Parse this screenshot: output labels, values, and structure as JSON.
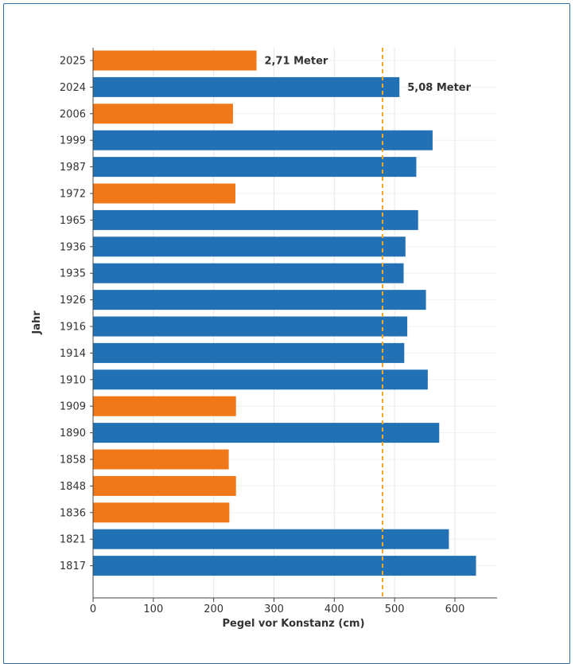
{
  "chart_data": {
    "type": "bar",
    "orientation": "horizontal",
    "xlabel": "Pegel vor Konstanz (cm)",
    "ylabel": "Jahr",
    "xlim": [
      0,
      670
    ],
    "xticks": [
      "0",
      "100",
      "200",
      "300",
      "400",
      "500",
      "600"
    ],
    "categories": [
      "2025",
      "2024",
      "2006",
      "1999",
      "1987",
      "1972",
      "1965",
      "1936",
      "1935",
      "1926",
      "1916",
      "1914",
      "1910",
      "1909",
      "1890",
      "1858",
      "1848",
      "1836",
      "1821",
      "1817"
    ],
    "values": [
      271,
      508,
      232,
      563,
      536,
      236,
      539,
      518,
      515,
      552,
      521,
      516,
      555,
      237,
      574,
      225,
      237,
      226,
      590,
      635
    ],
    "bar_group": [
      "low",
      "high",
      "low",
      "high",
      "high",
      "low",
      "high",
      "high",
      "high",
      "high",
      "high",
      "high",
      "high",
      "low",
      "high",
      "low",
      "low",
      "low",
      "high",
      "high"
    ],
    "colors": {
      "low": "#f07818",
      "high": "#2371b5",
      "reference_line": "#f5a623"
    },
    "reference_line_x": 480,
    "data_labels": [
      {
        "category": "2025",
        "text": "2,71 Meter"
      },
      {
        "category": "2024",
        "text": "5,08 Meter"
      }
    ],
    "grid": true
  }
}
